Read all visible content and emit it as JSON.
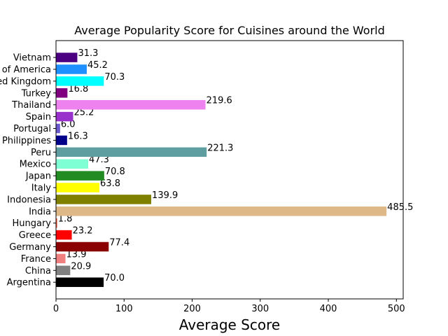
{
  "chart_data": {
    "type": "bar",
    "orientation": "horizontal",
    "title": "Average Popularity Score for Cuisines around the World",
    "xlabel": "Average Score",
    "ylabel": "",
    "xlim": [
      0,
      510
    ],
    "xticks": [
      0,
      100,
      200,
      300,
      400,
      500
    ],
    "grid": false,
    "legend": "none",
    "categories": [
      "Argentina",
      "China",
      "France",
      "Germany",
      "Greece",
      "Hungary",
      "India",
      "Indonesia",
      "Italy",
      "Japan",
      "Mexico",
      "Peru",
      "Philippines",
      "Portugal",
      "Spain",
      "Thailand",
      "Turkey",
      "United Kingdom",
      "United States of America",
      "Vietnam"
    ],
    "values": [
      70.0,
      20.9,
      13.9,
      77.4,
      23.2,
      1.8,
      485.5,
      139.9,
      63.8,
      70.8,
      47.3,
      221.3,
      16.3,
      6.0,
      25.2,
      219.6,
      16.8,
      70.3,
      45.2,
      31.3
    ],
    "data_labels": [
      "70.0",
      "20.9",
      "13.9",
      "77.4",
      "23.2",
      "1.8",
      "485.5",
      "139.9",
      "63.8",
      "70.8",
      "47.3",
      "221.3",
      "16.3",
      "6.0",
      "25.2",
      "219.6",
      "16.8",
      "70.3",
      "45.2",
      "31.3"
    ],
    "colors": [
      "#000000",
      "#808080",
      "#f08080",
      "#8b0000",
      "#ff0000",
      "#ff6347",
      "#deb887",
      "#808000",
      "#ffff00",
      "#228b22",
      "#7fffd4",
      "#5f9ea0",
      "#00008b",
      "#6a5acd",
      "#9932cc",
      "#ee82ee",
      "#800080",
      "#00ffff",
      "#1e90ff",
      "#4b0082"
    ]
  }
}
